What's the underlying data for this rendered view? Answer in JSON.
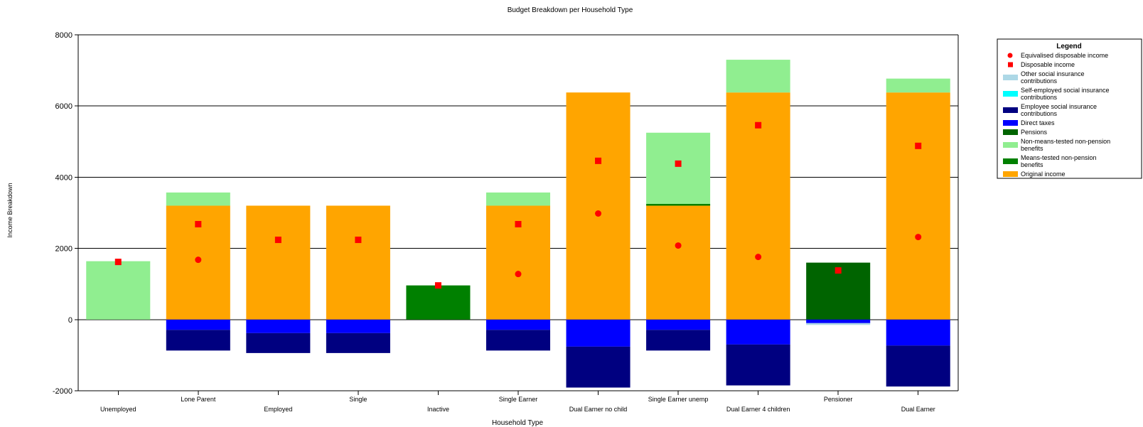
{
  "chart_data": {
    "type": "bar",
    "stacked": true,
    "title": "Budget Breakdown per Household Type",
    "xlabel": "Household Type",
    "ylabel": "Income Breakdown",
    "ylim": [
      -2000,
      8000
    ],
    "yticks": [
      "-2000",
      "0",
      "2000",
      "4000",
      "6000",
      "8000"
    ],
    "ytick_values": [
      -2000,
      0,
      2000,
      4000,
      6000,
      8000
    ],
    "grid": "horizontal",
    "legend_position": "right",
    "categories": [
      "Unemployed",
      "Lone Parent",
      "Employed",
      "Single",
      "Inactive",
      "Single Earner",
      "Dual Earner no child",
      "Single Earner unemp",
      "Dual Earner 4 children",
      "Pensioner",
      "Dual Earner"
    ],
    "positive_series": [
      {
        "name": "Original income",
        "color": "#FFA500",
        "values": [
          0,
          3200,
          3200,
          3200,
          0,
          3200,
          6380,
          3200,
          6380,
          0,
          6380
        ]
      },
      {
        "name": "Means-tested non-pension benefits",
        "color": "#008000",
        "values": [
          0,
          0,
          0,
          0,
          960,
          0,
          0,
          50,
          0,
          0,
          0
        ]
      },
      {
        "name": "Pensions",
        "color": "#006400",
        "values": [
          0,
          0,
          0,
          0,
          0,
          0,
          0,
          0,
          0,
          1600,
          0
        ]
      },
      {
        "name": "Non-means-tested non-pension benefits",
        "color": "#90EE90",
        "values": [
          1640,
          370,
          0,
          0,
          0,
          370,
          0,
          2000,
          920,
          0,
          390
        ]
      }
    ],
    "negative_series": [
      {
        "name": "Direct taxes",
        "color": "#0000FF",
        "values": [
          0,
          -290,
          -380,
          -380,
          0,
          -290,
          -760,
          -290,
          -700,
          -100,
          -730
        ]
      },
      {
        "name": "Employee social insurance contributions",
        "color": "#000080",
        "values": [
          0,
          -580,
          -560,
          -560,
          0,
          -580,
          -1150,
          -580,
          -1150,
          0,
          -1150
        ]
      },
      {
        "name": "Self-employed social insurance contributions",
        "color": "#00FFFF",
        "values": [
          0,
          0,
          0,
          0,
          0,
          0,
          0,
          0,
          0,
          0,
          0
        ]
      },
      {
        "name": "Other social insurance contributions",
        "color": "#ADD8E6",
        "values": [
          0,
          0,
          0,
          0,
          0,
          0,
          0,
          0,
          0,
          -50,
          0
        ]
      }
    ],
    "point_series": [
      {
        "name": "Equivalised disposable income",
        "marker": "circle",
        "color": "#FF0000",
        "values": [
          null,
          1680,
          null,
          null,
          null,
          1280,
          2980,
          2080,
          1760,
          null,
          2320
        ]
      },
      {
        "name": "Disposable income",
        "marker": "square",
        "color": "#FF0000",
        "values": [
          1620,
          2680,
          2240,
          2240,
          960,
          2680,
          4460,
          4380,
          5460,
          1380,
          4880
        ]
      }
    ],
    "legend": {
      "title": "Legend",
      "items": [
        {
          "label": "Equivalised disposable income",
          "symbol": "circle",
          "color": "#FF0000"
        },
        {
          "label": "Disposable income",
          "symbol": "square",
          "color": "#FF0000"
        },
        {
          "label": "Other social insurance contributions",
          "symbol": "bar",
          "color": "#ADD8E6"
        },
        {
          "label": "Self-employed social insurance contributions",
          "symbol": "bar",
          "color": "#00FFFF"
        },
        {
          "label": "Employee social insurance contributions",
          "symbol": "bar",
          "color": "#000080"
        },
        {
          "label": "Direct taxes",
          "symbol": "bar",
          "color": "#0000FF"
        },
        {
          "label": "Pensions",
          "symbol": "bar",
          "color": "#006400"
        },
        {
          "label": "Non-means-tested non-pension benefits",
          "symbol": "bar",
          "color": "#90EE90"
        },
        {
          "label": "Means-tested non-pension benefits",
          "symbol": "bar",
          "color": "#008000"
        },
        {
          "label": "Original income",
          "symbol": "bar",
          "color": "#FFA500"
        }
      ]
    }
  }
}
